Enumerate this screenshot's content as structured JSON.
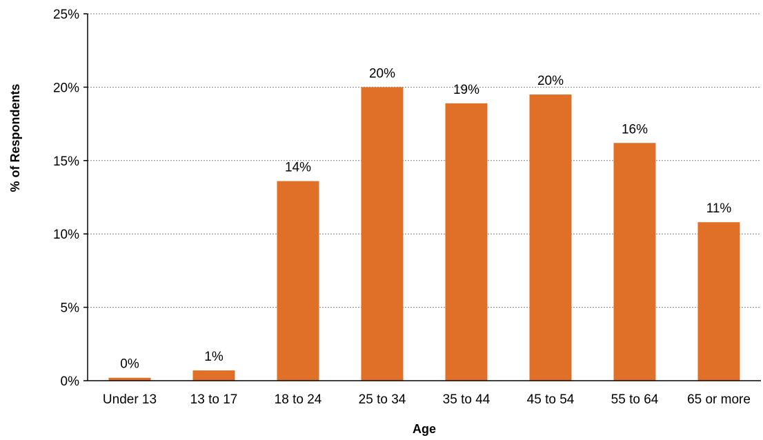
{
  "chart_data": {
    "type": "bar",
    "title": "",
    "xlabel": "Age",
    "ylabel": "% of Respondents",
    "categories": [
      "Under 13",
      "13 to 17",
      "18 to 24",
      "25 to 34",
      "35 to 44",
      "45 to 54",
      "55 to 64",
      "65 or more"
    ],
    "values": [
      0.2,
      0.7,
      13.6,
      20.0,
      18.9,
      19.5,
      16.2,
      10.8
    ],
    "data_labels": [
      "0%",
      "1%",
      "14%",
      "20%",
      "19%",
      "20%",
      "16%",
      "11%"
    ],
    "ylim": [
      0,
      25
    ],
    "yticks": [
      0,
      5,
      10,
      15,
      20,
      25
    ],
    "ytick_labels": [
      "0%",
      "5%",
      "10%",
      "15%",
      "20%",
      "25%"
    ],
    "grid": true,
    "grid_style": "dotted",
    "bar_color": "#E07028"
  }
}
